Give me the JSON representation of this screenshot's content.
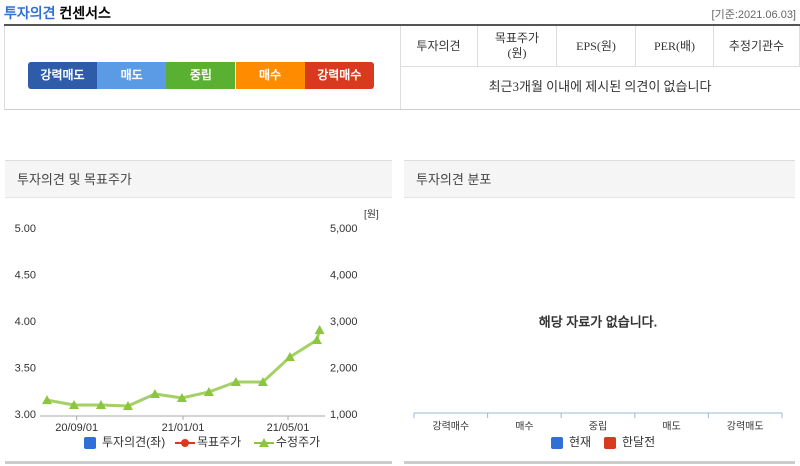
{
  "header": {
    "title": "투자의견",
    "subtitle": "컨센서스",
    "date": "[기준:2021.06.03]"
  },
  "opinion_scale": [
    {
      "label": "강력매도",
      "color": "#2f5ca8"
    },
    {
      "label": "매도",
      "color": "#5b9be6"
    },
    {
      "label": "중립",
      "color": "#5ab031"
    },
    {
      "label": "매수",
      "color": "#ff8c00"
    },
    {
      "label": "강력매수",
      "color": "#d9391f"
    }
  ],
  "table": {
    "columns": [
      "투자의견",
      "목표주가\n(원)",
      "EPS(원)",
      "PER(배)",
      "추정기관수"
    ],
    "message": "최근3개월 이내에 제시된 의견이 없습니다"
  },
  "chart_data": [
    {
      "type": "line",
      "title": "투자의견 및 목표주가",
      "y2_unit": "[원]",
      "x": [
        0,
        1,
        2,
        3,
        4,
        5,
        6,
        7,
        8,
        9,
        10,
        10.1
      ],
      "xlim": [
        0,
        10.3
      ],
      "xticks": [
        {
          "value": 1.1,
          "label": "20/09/01"
        },
        {
          "value": 5.04,
          "label": "21/01/01"
        },
        {
          "value": 8.93,
          "label": "21/05/01"
        }
      ],
      "ylim": [
        3,
        5
      ],
      "yticks": [
        {
          "value": 3,
          "label": "3.00"
        },
        {
          "value": 3.5,
          "label": "3.50"
        },
        {
          "value": 4,
          "label": "4.00"
        },
        {
          "value": 4.5,
          "label": "4.50"
        },
        {
          "value": 5,
          "label": "5.00"
        }
      ],
      "y2lim": [
        1000,
        5000
      ],
      "y2ticks": [
        {
          "value": 1000,
          "label": "1,000"
        },
        {
          "value": 2000,
          "label": "2,000"
        },
        {
          "value": 3000,
          "label": "3,000"
        },
        {
          "value": 4000,
          "label": "4,000"
        },
        {
          "value": 5000,
          "label": "5,000"
        }
      ],
      "series": [
        {
          "name": "투자의견(좌)",
          "color": "#2f6fd6",
          "marker": "square",
          "values": [
            null,
            null,
            null,
            null,
            null,
            null,
            null,
            null,
            null,
            null,
            null,
            null
          ]
        },
        {
          "name": "목표주가",
          "color": "#d9391f",
          "marker": "circle",
          "axis": "y2",
          "values": [
            null,
            null,
            null,
            null,
            null,
            null,
            null,
            null,
            null,
            null,
            null,
            null
          ]
        },
        {
          "name": "수정주가",
          "color": "#8cc63f",
          "marker": "triangle",
          "axis": "y2",
          "values": [
            1320,
            1215,
            1215,
            1194,
            1452,
            1366,
            1495,
            1710,
            1710,
            2247,
            2613,
            2828
          ]
        }
      ]
    },
    {
      "type": "bar",
      "title": "투자의견 분포",
      "annotation": "해당 자료가 없습니다.",
      "categories": [
        "강력매수",
        "매수",
        "중립",
        "매도",
        "강력매도"
      ],
      "series": [
        {
          "name": "현재",
          "color": "#2f6fd6",
          "marker": "square",
          "values": [
            null,
            null,
            null,
            null,
            null
          ]
        },
        {
          "name": "한달전",
          "color": "#d9391f",
          "marker": "square",
          "values": [
            null,
            null,
            null,
            null,
            null
          ]
        }
      ]
    }
  ]
}
